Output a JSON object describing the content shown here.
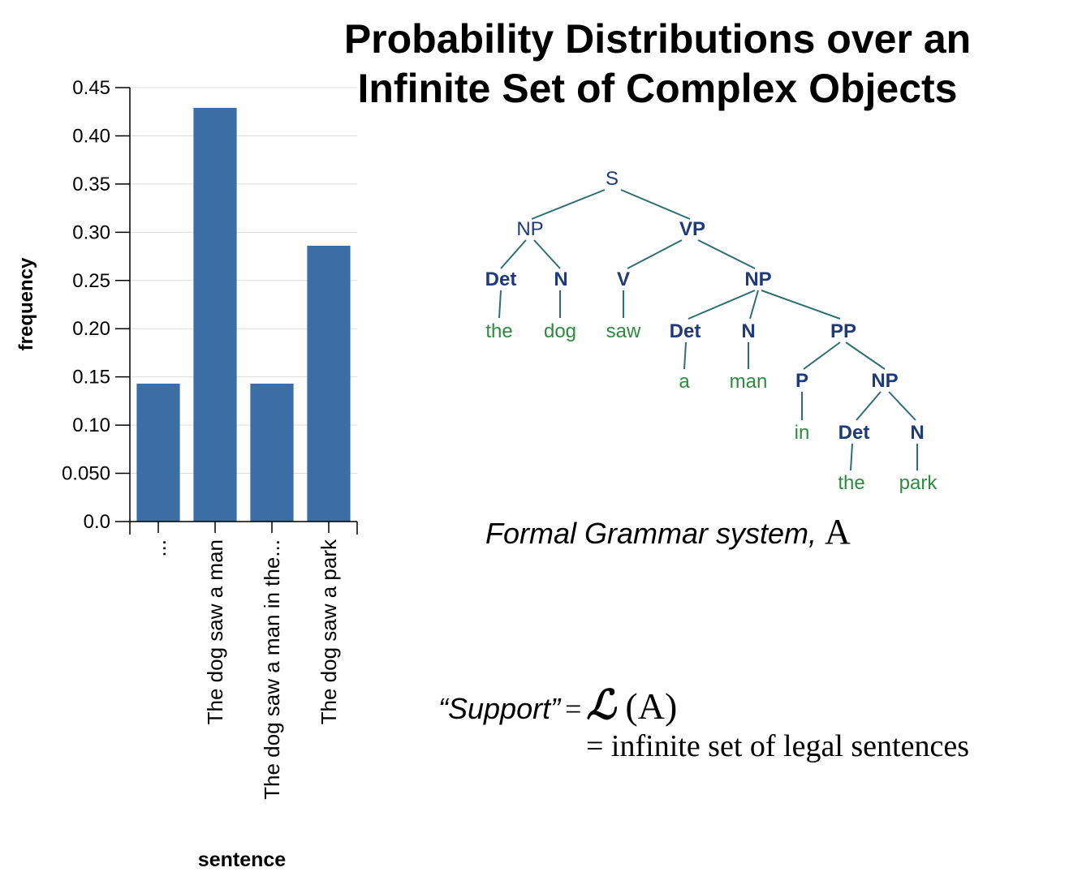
{
  "title": {
    "line1": "Probability Distributions over an",
    "line2": "Infinite Set of Complex Objects"
  },
  "chart_data": {
    "type": "bar",
    "categories": [
      "...",
      "The dog saw a man",
      "The dog saw a man in the...",
      "The dog saw a park"
    ],
    "values": [
      0.143,
      0.429,
      0.143,
      0.286
    ],
    "xlabel": "sentence",
    "ylabel": "frequency",
    "ylim": [
      0,
      0.45
    ],
    "yticks": [
      "0.0",
      "0.050",
      "0.10",
      "0.15",
      "0.20",
      "0.25",
      "0.30",
      "0.35",
      "0.40",
      "0.45"
    ],
    "ytick_values": [
      0,
      0.05,
      0.1,
      0.15,
      0.2,
      0.25,
      0.3,
      0.35,
      0.4,
      0.45
    ],
    "grid": true,
    "bar_color": "#3a6ea5"
  },
  "parse_tree": {
    "node_color": "#1f3a7a",
    "word_color": "#2e8b3e",
    "edge_color": "#2f6f6f",
    "nodes": {
      "S": "S",
      "NP1": "NP",
      "VP": "VP",
      "Det1": "Det",
      "N1": "N",
      "V": "V",
      "NP2": "NP",
      "Det2": "Det",
      "N2": "N",
      "PP": "PP",
      "P": "P",
      "NP3": "NP",
      "Det3": "Det",
      "N3": "N"
    },
    "words": {
      "the1": "the",
      "dog": "dog",
      "saw": "saw",
      "a": "a",
      "man": "man",
      "in": "in",
      "the2": "the",
      "park": "park"
    }
  },
  "caption": {
    "text": "Formal Grammar system,",
    "symbol": "A"
  },
  "support": {
    "quote": "“Support”",
    "equals": "=",
    "script_l": "ℒ",
    "arg": "(A)",
    "line2": "= infinite set of legal sentences"
  }
}
